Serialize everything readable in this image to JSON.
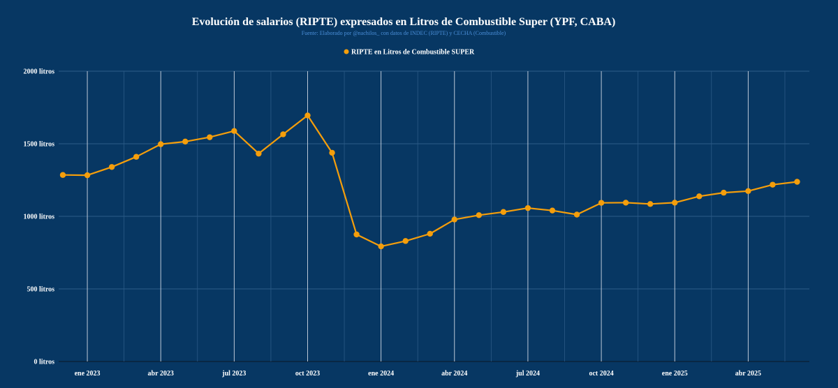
{
  "colors": {
    "background": "#073763",
    "series": "#f59e0b",
    "grid_major": "#d0d8e4",
    "grid_minor": "#2b5a86",
    "grid_h": "#3a6a96",
    "text": "#ffffff",
    "subtitle": "#4a8ed8"
  },
  "chart_data": {
    "type": "line",
    "title": "Evolución de salarios (RIPTE) expresados en Litros de Combustible Super (YPF, CABA)",
    "subtitle": "Fuente: Elaborado por @nachilos_ con datos de INDEC (RIPTE) y CECHA (Combustible)",
    "legend": "RIPTE en Litros de Combustible SUPER",
    "legend_position": "top-center",
    "ylim": [
      0,
      2000
    ],
    "y_ticks": [
      {
        "value": 0,
        "label": "0 litros"
      },
      {
        "value": 500,
        "label": "500 litros"
      },
      {
        "value": 1000,
        "label": "1000 litros"
      },
      {
        "value": 1500,
        "label": "1500 litros"
      },
      {
        "value": 2000,
        "label": "2000 litros"
      }
    ],
    "x_range": [
      -1,
      29.5
    ],
    "x_ticks": [
      {
        "value": 0,
        "label": "ene 2023"
      },
      {
        "value": 3,
        "label": "abr 2023"
      },
      {
        "value": 6,
        "label": "jul 2023"
      },
      {
        "value": 9,
        "label": "oct 2023"
      },
      {
        "value": 12,
        "label": "ene 2024"
      },
      {
        "value": 15,
        "label": "abr 2024"
      },
      {
        "value": 18,
        "label": "jul 2024"
      },
      {
        "value": 21,
        "label": "oct 2024"
      },
      {
        "value": 24,
        "label": "ene 2025"
      },
      {
        "value": 27,
        "label": "abr 2025"
      }
    ],
    "minor_x_ticks": [
      1.5,
      4.5,
      7.5,
      10.5,
      13.5,
      16.5,
      19.5,
      22.5,
      25.5,
      28.5
    ],
    "series": [
      {
        "name": "RIPTE en Litros de Combustible SUPER",
        "x": [
          -1,
          0,
          1,
          2,
          3,
          4,
          5,
          6,
          7,
          8,
          9,
          10,
          11,
          12,
          13,
          14,
          15,
          16,
          17,
          18,
          19,
          20,
          21,
          22,
          23,
          24,
          25,
          26,
          27,
          28,
          29
        ],
        "values": [
          1285,
          1283,
          1340,
          1410,
          1497,
          1515,
          1545,
          1588,
          1432,
          1565,
          1695,
          1438,
          875,
          793,
          830,
          880,
          978,
          1008,
          1030,
          1057,
          1040,
          1012,
          1093,
          1094,
          1085,
          1094,
          1138,
          1163,
          1174,
          1218,
          1238
        ]
      }
    ]
  }
}
